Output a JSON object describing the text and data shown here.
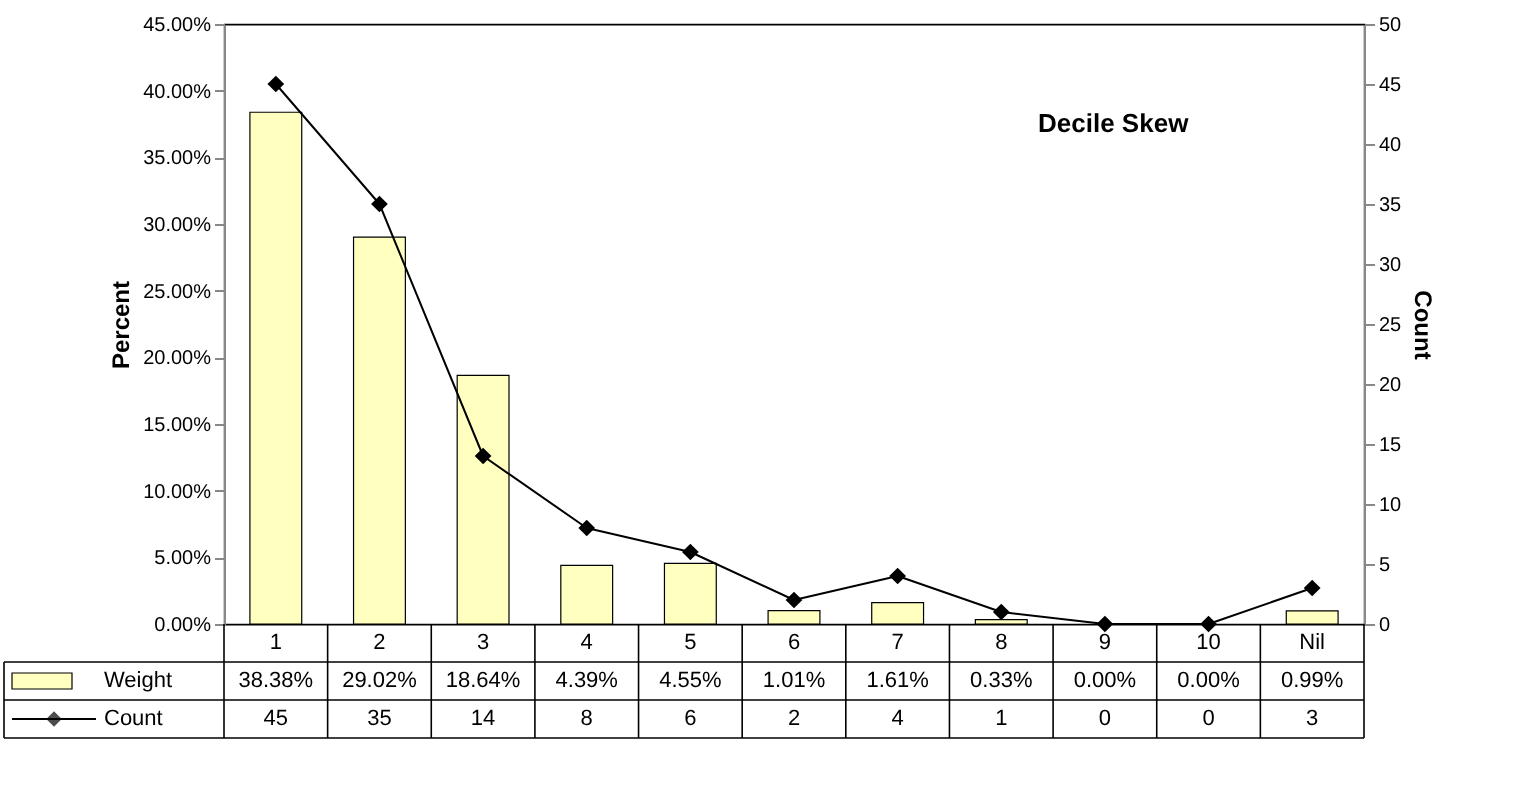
{
  "chart_data": {
    "type": "bar",
    "title": "Decile Skew",
    "ylabel": "Percent",
    "y2label": "Count",
    "categories": [
      "1",
      "2",
      "3",
      "4",
      "5",
      "6",
      "7",
      "8",
      "9",
      "10",
      "Nil"
    ],
    "series": [
      {
        "name": "Weight",
        "color": "#ffffc0",
        "values": [
          38.38,
          29.02,
          18.64,
          4.39,
          4.55,
          1.01,
          1.61,
          0.33,
          0.0,
          0.0,
          0.99
        ],
        "value_labels": [
          "38.38%",
          "29.02%",
          "18.64%",
          "4.39%",
          "4.55%",
          "1.01%",
          "1.61%",
          "0.33%",
          "0.00%",
          "0.00%",
          "0.99%"
        ]
      },
      {
        "name": "Count",
        "type": "line",
        "axis": "y2",
        "color": "#000000",
        "marker": "diamond",
        "values": [
          45,
          35,
          14,
          8,
          6,
          2,
          4,
          1,
          0,
          0,
          3
        ],
        "value_labels": [
          "45",
          "35",
          "14",
          "8",
          "6",
          "2",
          "4",
          "1",
          "0",
          "0",
          "3"
        ]
      }
    ],
    "ylim": [
      0,
      45
    ],
    "yticks": [
      {
        "value": 0,
        "label": "0.00%"
      },
      {
        "value": 5,
        "label": "5.00%"
      },
      {
        "value": 10,
        "label": "10.00%"
      },
      {
        "value": 15,
        "label": "15.00%"
      },
      {
        "value": 20,
        "label": "20.00%"
      },
      {
        "value": 25,
        "label": "25.00%"
      },
      {
        "value": 30,
        "label": "30.00%"
      },
      {
        "value": 35,
        "label": "35.00%"
      },
      {
        "value": 40,
        "label": "40.00%"
      },
      {
        "value": 45,
        "label": "45.00%"
      }
    ],
    "y2lim": [
      0,
      50
    ],
    "y2ticks": [
      0,
      5,
      10,
      15,
      20,
      25,
      30,
      35,
      40,
      45,
      50
    ],
    "grid": false,
    "legend": "bottom"
  }
}
